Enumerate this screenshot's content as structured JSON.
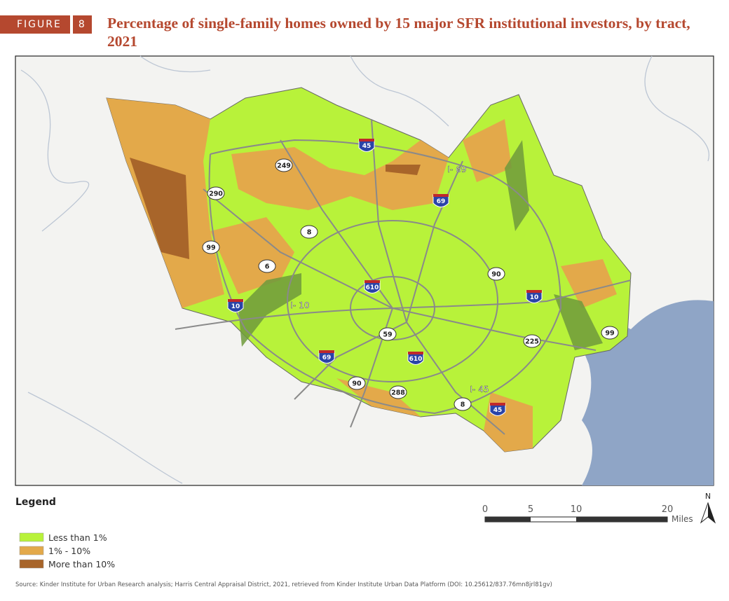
{
  "header": {
    "figure_label": "FIGURE",
    "figure_number": "8",
    "title": "Percentage of single-family homes owned by 15 major SFR institutional investors, by tract, 2021"
  },
  "map": {
    "road_labels": [
      "45",
      "249",
      "290",
      "69",
      "I- 69",
      "8",
      "99",
      "6",
      "610",
      "90",
      "10",
      "I- 10",
      "10",
      "59",
      "99",
      "225",
      "69",
      "610",
      "90",
      "288",
      "8",
      "I- 45",
      "45"
    ]
  },
  "legend": {
    "title": "Legend",
    "items": [
      "Less than 1%",
      "1% - 10%",
      "More than 10%"
    ]
  },
  "scale_bar": {
    "ticks": [
      0,
      5,
      10,
      20
    ],
    "unit": "Miles"
  },
  "north_label": "N",
  "source": "Source: Kinder Institute for Urban Research analysis; Harris Central Appraisal District, 2021, retrieved from Kinder Institute Urban Data Platform (DOI: 10.25612/837.76mn8jrl81gv)"
}
